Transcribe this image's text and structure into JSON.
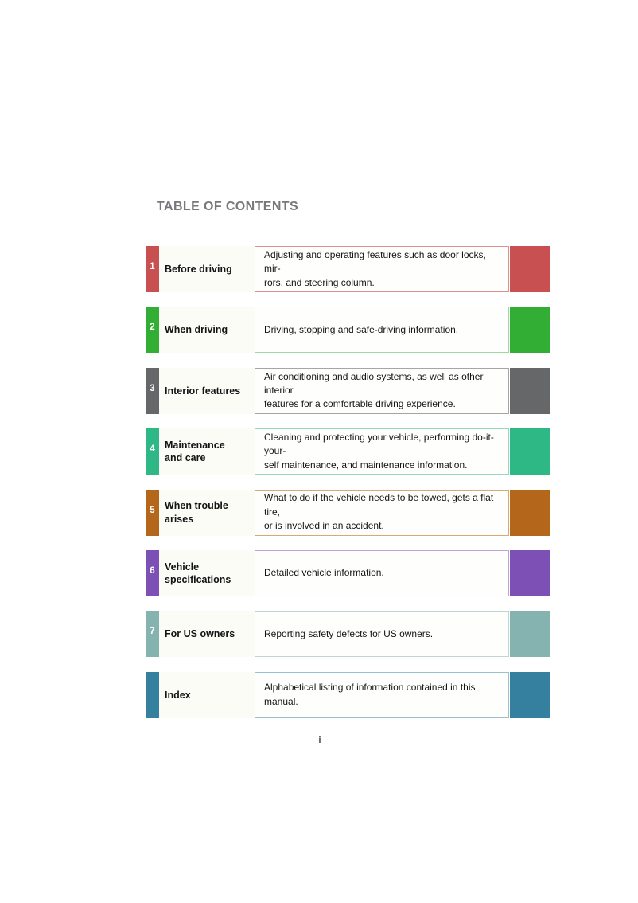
{
  "page": {
    "heading": "TABLE OF CONTENTS",
    "page_number": "i",
    "heading_color": "#77787B"
  },
  "toc": {
    "items": [
      {
        "number": "1",
        "title": "Before driving",
        "description": "Adjusting and operating features such as door locks, mir-\nrors, and steering column.",
        "color": "#C85050",
        "border_color": "#DB928F"
      },
      {
        "number": "2",
        "title": "When driving",
        "description": "Driving, stopping and safe-driving information.",
        "color": "#33AE35",
        "border_color": "#A0D8A4"
      },
      {
        "number": "3",
        "title": "Interior features",
        "description": "Air conditioning and audio systems, as well as other interior\nfeatures for a comfortable driving experience.",
        "color": "#666769",
        "border_color": "#A6A6A7"
      },
      {
        "number": "4",
        "title": "Maintenance\nand care",
        "description": "Cleaning and protecting your vehicle, performing do-it-your-\nself maintenance, and maintenance information.",
        "color": "#2EB885",
        "border_color": "#98D8BF"
      },
      {
        "number": "5",
        "title": "When trouble\narises",
        "description": "What to do if the vehicle needs to be towed, gets a flat tire,\nor is involved in an accident.",
        "color": "#B4661B",
        "border_color": "#D5AA79"
      },
      {
        "number": "6",
        "title": "Vehicle\nspecifications",
        "description": "Detailed vehicle information.",
        "color": "#7C50B4",
        "border_color": "#BCA4D8"
      },
      {
        "number": "7",
        "title": "For US owners",
        "description": "Reporting safety defects for US owners.",
        "color": "#85B3B0",
        "border_color": "#BFD6D4"
      },
      {
        "number": "",
        "title": "Index",
        "description": "Alphabetical listing of information contained in this manual.",
        "color": "#35809F",
        "border_color": "#9DC0CE"
      }
    ]
  }
}
